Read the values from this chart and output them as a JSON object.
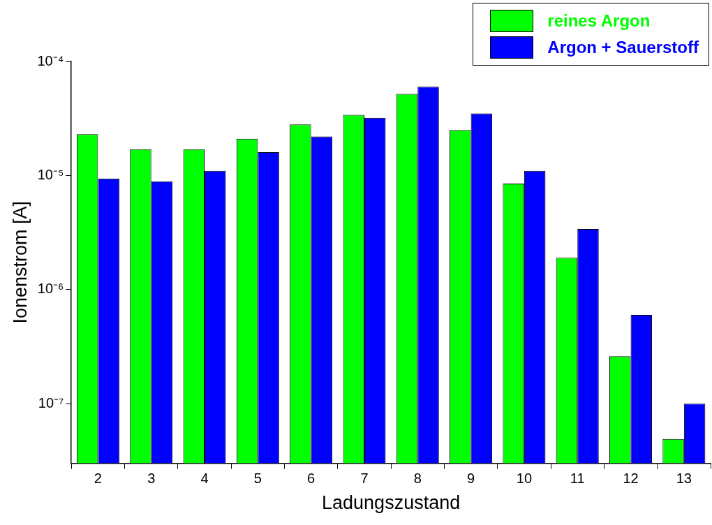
{
  "chart_data": {
    "type": "bar",
    "xlabel": "Ladungszustand",
    "ylabel": "Ionenstrom [A]",
    "categories": [
      "2",
      "3",
      "4",
      "5",
      "6",
      "7",
      "8",
      "9",
      "10",
      "11",
      "12",
      "13"
    ],
    "series": [
      {
        "name": "reines Argon",
        "color": "#00ff00",
        "values": [
          2.3e-05,
          1.7e-05,
          1.7e-05,
          2.1e-05,
          2.8e-05,
          3.4e-05,
          5.2e-05,
          2.5e-05,
          8.5e-06,
          1.9e-06,
          2.6e-07,
          4.9e-08
        ]
      },
      {
        "name": "Argon + Sauerstoff",
        "color": "#0000ff",
        "values": [
          9.4e-06,
          8.9e-06,
          1.1e-05,
          1.6e-05,
          2.2e-05,
          3.2e-05,
          6e-05,
          3.5e-05,
          1.1e-05,
          3.4e-06,
          6e-07,
          1e-07
        ]
      }
    ],
    "log": "y",
    "ylim": [
      3e-08,
      0.0001
    ],
    "yticks": [
      {
        "value": 1e-07,
        "label": "10⁻⁷"
      },
      {
        "value": 1e-06,
        "label": "10⁻⁶"
      },
      {
        "value": 1e-05,
        "label": "10⁻⁵"
      },
      {
        "value": 0.0001,
        "label": "10⁻⁴"
      }
    ],
    "grid": false,
    "legend": "top right"
  }
}
